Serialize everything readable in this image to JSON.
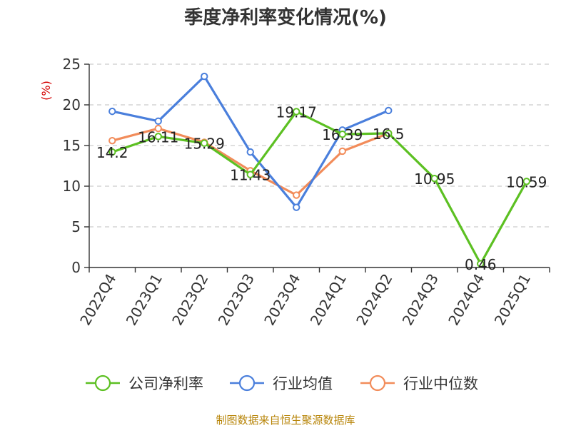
{
  "chart_data": {
    "type": "line",
    "title": "季度净利率变化情况(%)",
    "ylabel": "(%)",
    "ylim": [
      0,
      25
    ],
    "yticks": [
      0,
      5,
      10,
      15,
      20,
      25
    ],
    "categories": [
      "2022Q4",
      "2023Q1",
      "2023Q2",
      "2023Q3",
      "2023Q4",
      "2024Q1",
      "2024Q2",
      "2024Q3",
      "2024Q4",
      "2025Q1"
    ],
    "grid": true,
    "legend_position": "bottom",
    "series": [
      {
        "name": "公司净利率",
        "color": "#5cc022",
        "values": [
          14.2,
          16.11,
          15.29,
          11.43,
          19.17,
          16.39,
          16.5,
          10.95,
          0.46,
          10.59
        ],
        "labels": [
          "14.2",
          "16.11",
          "15.29",
          "11.43",
          "19.17",
          "16.39",
          "16.5",
          "10.95",
          "0.46",
          "10.59"
        ]
      },
      {
        "name": "行业均值",
        "color": "#4a7fdc",
        "values": [
          19.2,
          18.0,
          23.5,
          14.2,
          7.4,
          16.9,
          19.3,
          null,
          null,
          null
        ]
      },
      {
        "name": "行业中位数",
        "color": "#f28c5a",
        "values": [
          15.6,
          17.1,
          15.4,
          11.9,
          8.9,
          14.3,
          16.5,
          null,
          null,
          null
        ]
      }
    ]
  },
  "source": "制图数据来自恒生聚源数据库"
}
